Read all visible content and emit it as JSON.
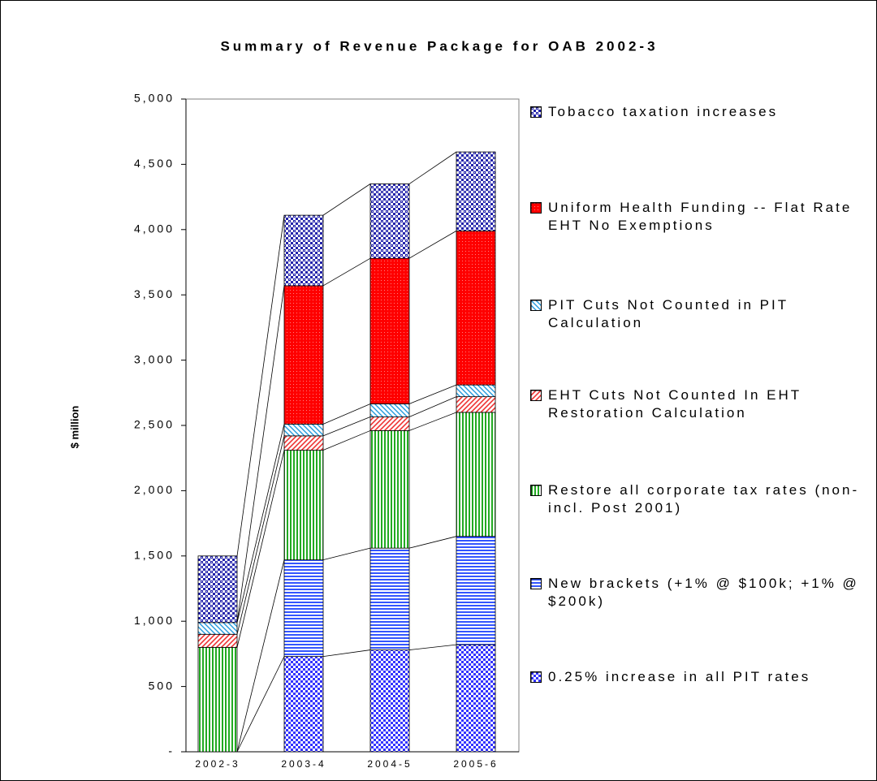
{
  "chart_data": {
    "type": "stacked_bar",
    "title": "Summary of Revenue Package for OAB 2002-3",
    "y_label": "$ million",
    "categories": [
      "2002-3",
      "2003-4",
      "2004-5",
      "2005-6"
    ],
    "ylim": [
      0,
      5000
    ],
    "yticks": [
      {
        "value": 0,
        "label": "-"
      },
      500,
      {
        "value": 1000,
        "label": "1,000"
      },
      {
        "value": 1500,
        "label": "1,500"
      },
      {
        "value": 2000,
        "label": "2,000"
      },
      {
        "value": 2500,
        "label": "2,500"
      },
      {
        "value": 3000,
        "label": "3,000"
      },
      {
        "value": 3500,
        "label": "3,500"
      },
      {
        "value": 4000,
        "label": "4,000"
      },
      {
        "value": 4500,
        "label": "4,500"
      },
      {
        "value": 5000,
        "label": "5,000"
      }
    ],
    "legend": "right",
    "series": [
      {
        "name": "0.25% increase in all PIT rates",
        "color": "#3333ff",
        "values": [
          0,
          730,
          780,
          820
        ]
      },
      {
        "name": "New brackets (+1% @ $100k; +1% @ $200k)",
        "color": "#3355ff",
        "values": [
          0,
          740,
          780,
          830
        ]
      },
      {
        "name": "Restore all corporate tax rates (non-incl. Post 2001)",
        "color": "#22aa22",
        "values": [
          800,
          840,
          900,
          950
        ]
      },
      {
        "name": "EHT Cuts Not Counted In EHT Restoration Calculation",
        "color": "#ee3333",
        "values": [
          100,
          110,
          105,
          120
        ]
      },
      {
        "name": "PIT Cuts Not Counted in PIT Calculation",
        "color": "#2299dd",
        "values": [
          90,
          90,
          100,
          90
        ]
      },
      {
        "name": "Uniform Health Funding -- Flat Rate EHT No Exemptions",
        "color": "#ff0000",
        "values": [
          0,
          1060,
          1115,
          1180
        ]
      },
      {
        "name": "Tobacco taxation increases",
        "color": "#2222aa",
        "values": [
          510,
          540,
          570,
          605
        ]
      }
    ]
  }
}
